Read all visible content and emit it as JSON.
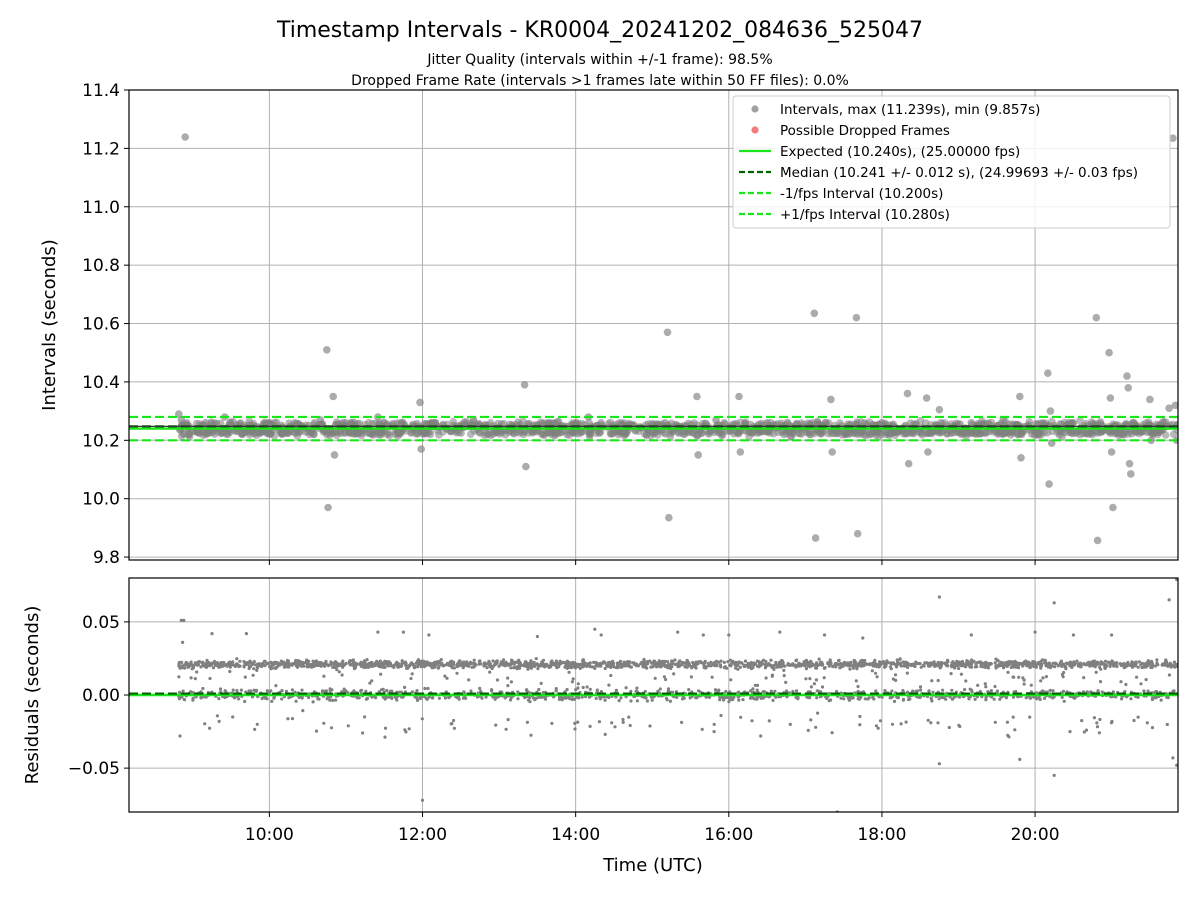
{
  "figure": {
    "title": "Timestamp Intervals - KR0004_20241202_084636_525047",
    "subtitle_line1": "Jitter Quality (intervals within +/-1 frame): 98.5%",
    "subtitle_line2": "Dropped Frame Rate (intervals >1 frames late within 50 FF files): 0.0%",
    "xlabel": "Time (UTC)"
  },
  "colors": {
    "points": "#808080",
    "dropped": "#f05050",
    "expected": "#19e619",
    "median": "#006400",
    "bounds": "#19e619",
    "grid": "#b0b0b0"
  },
  "chart_data": [
    {
      "type": "scatter",
      "ylabel": "Intervals (seconds)",
      "xlim": [
        "08:10",
        "21:52"
      ],
      "ylim": [
        9.79,
        11.4
      ],
      "x_ticks": [
        "10:00",
        "12:00",
        "14:00",
        "16:00",
        "18:00",
        "20:00"
      ],
      "y_ticks": [
        "9.8",
        "10.0",
        "10.2",
        "10.4",
        "10.6",
        "10.8",
        "11.0",
        "11.2",
        "11.4"
      ],
      "grid": true,
      "legend_position": "top-right",
      "legend": [
        "Intervals, max (11.239s), min (9.857s)",
        "Possible Dropped Frames",
        "Expected (10.240s), (25.00000 fps)",
        "Median (10.241 +/- 0.012 s), (24.99693 +/- 0.03 fps)",
        "-1/fps Interval (10.200s)",
        "+1/fps Interval (10.280s)"
      ],
      "reference_lines": {
        "expected": 10.24,
        "median": 10.241,
        "minus_interval": 10.2,
        "plus_interval": 10.28
      },
      "series": [
        {
          "name": "Intervals",
          "points": [
            [
              "08:49",
              10.29
            ],
            [
              "08:51",
              10.27
            ],
            [
              "08:54",
              11.239
            ],
            [
              "08:56",
              10.25
            ],
            [
              "09:10",
              10.26
            ],
            [
              "09:25",
              10.28
            ],
            [
              "09:40",
              10.24
            ],
            [
              "10:00",
              10.26
            ],
            [
              "10:20",
              10.24
            ],
            [
              "10:40",
              10.27
            ],
            [
              "10:45",
              10.51
            ],
            [
              "10:46",
              9.97
            ],
            [
              "10:50",
              10.35
            ],
            [
              "10:51",
              10.15
            ],
            [
              "11:00",
              10.26
            ],
            [
              "11:25",
              10.28
            ],
            [
              "11:40",
              10.24
            ],
            [
              "11:58",
              10.33
            ],
            [
              "11:59",
              10.17
            ],
            [
              "12:10",
              10.26
            ],
            [
              "12:40",
              10.27
            ],
            [
              "13:00",
              10.24
            ],
            [
              "13:20",
              10.39
            ],
            [
              "13:21",
              10.11
            ],
            [
              "13:40",
              10.26
            ],
            [
              "14:10",
              10.28
            ],
            [
              "14:40",
              10.24
            ],
            [
              "15:10",
              10.26
            ],
            [
              "15:12",
              10.57
            ],
            [
              "15:13",
              9.935
            ],
            [
              "15:35",
              10.35
            ],
            [
              "15:36",
              10.15
            ],
            [
              "15:50",
              10.27
            ],
            [
              "16:08",
              10.35
            ],
            [
              "16:09",
              10.16
            ],
            [
              "16:30",
              10.26
            ],
            [
              "16:50",
              10.24
            ],
            [
              "17:07",
              10.635
            ],
            [
              "17:08",
              9.865
            ],
            [
              "17:20",
              10.34
            ],
            [
              "17:21",
              10.16
            ],
            [
              "17:40",
              10.62
            ],
            [
              "17:41",
              9.88
            ],
            [
              "18:00",
              10.26
            ],
            [
              "18:20",
              10.36
            ],
            [
              "18:21",
              10.12
            ],
            [
              "18:35",
              10.345
            ],
            [
              "18:36",
              10.16
            ],
            [
              "18:45",
              10.305
            ],
            [
              "19:10",
              10.26
            ],
            [
              "19:35",
              10.27
            ],
            [
              "19:48",
              10.35
            ],
            [
              "19:49",
              10.14
            ],
            [
              "20:10",
              10.43
            ],
            [
              "20:11",
              10.05
            ],
            [
              "20:12",
              10.3
            ],
            [
              "20:13",
              10.19
            ],
            [
              "20:30",
              10.26
            ],
            [
              "20:48",
              10.62
            ],
            [
              "20:49",
              9.857
            ],
            [
              "20:58",
              10.5
            ],
            [
              "20:59",
              10.345
            ],
            [
              "21:00",
              10.16
            ],
            [
              "21:01",
              9.97
            ],
            [
              "21:12",
              10.42
            ],
            [
              "21:13",
              10.38
            ],
            [
              "21:14",
              10.12
            ],
            [
              "21:15",
              10.085
            ],
            [
              "21:30",
              10.34
            ],
            [
              "21:31",
              10.2
            ],
            [
              "21:45",
              10.31
            ],
            [
              "21:48",
              11.235
            ],
            [
              "21:50",
              10.32
            ],
            [
              "21:51",
              10.2
            ]
          ]
        }
      ]
    },
    {
      "type": "scatter",
      "ylabel": "Residuals (seconds)",
      "xlim": [
        "08:10",
        "21:52"
      ],
      "ylim": [
        -0.08,
        0.08
      ],
      "x_ticks": [
        "10:00",
        "12:00",
        "14:00",
        "16:00",
        "18:00",
        "20:00"
      ],
      "y_ticks": [
        "−0.05",
        "0.00",
        "0.05"
      ],
      "grid": true,
      "reference_lines": {
        "expected": 0.0,
        "median": 0.001
      },
      "series": [
        {
          "name": "Residuals",
          "bands": [
            0.021,
            0.0
          ],
          "outliers": [
            [
              "08:51",
              0.051
            ],
            [
              "08:53",
              0.051
            ],
            [
              "08:52",
              0.036
            ],
            [
              "08:50",
              -0.028
            ],
            [
              "09:15",
              0.042
            ],
            [
              "09:42",
              0.042
            ],
            [
              "11:25",
              0.043
            ],
            [
              "11:45",
              0.043
            ],
            [
              "12:00",
              -0.072
            ],
            [
              "12:05",
              0.041
            ],
            [
              "13:30",
              0.04
            ],
            [
              "14:15",
              0.045
            ],
            [
              "14:20",
              0.041
            ],
            [
              "15:20",
              0.043
            ],
            [
              "15:40",
              0.041
            ],
            [
              "16:00",
              0.041
            ],
            [
              "16:40",
              0.043
            ],
            [
              "17:15",
              0.041
            ],
            [
              "17:25",
              -0.08
            ],
            [
              "17:45",
              0.039
            ],
            [
              "18:45",
              0.067
            ],
            [
              "18:45",
              -0.047
            ],
            [
              "19:10",
              0.041
            ],
            [
              "19:48",
              -0.044
            ],
            [
              "20:00",
              0.043
            ],
            [
              "20:15",
              0.063
            ],
            [
              "20:15",
              -0.055
            ],
            [
              "20:30",
              0.041
            ],
            [
              "21:00",
              0.041
            ],
            [
              "21:45",
              0.065
            ],
            [
              "21:48",
              -0.043
            ],
            [
              "21:51",
              -0.048
            ],
            [
              "21:51",
              0.079
            ]
          ]
        }
      ]
    }
  ]
}
